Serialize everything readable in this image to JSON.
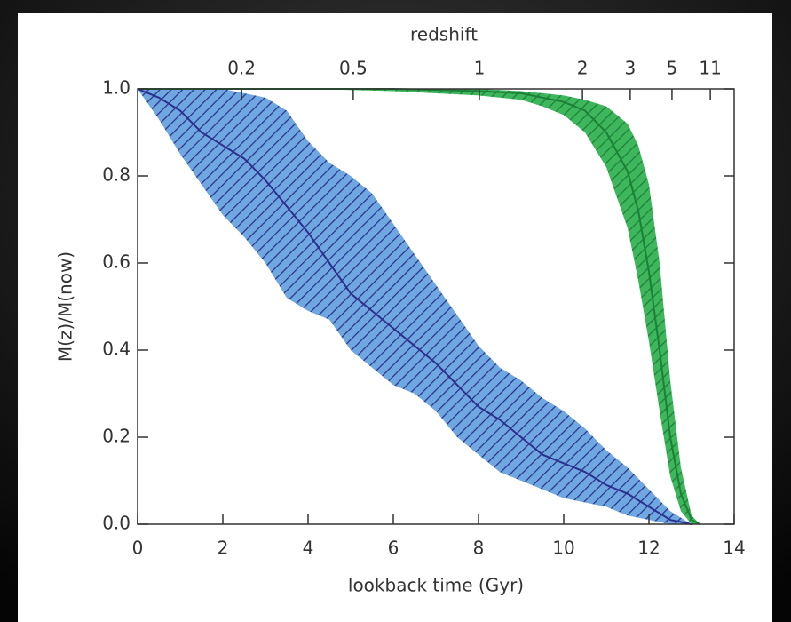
{
  "chart_data": {
    "type": "band",
    "xlabel": "lookback time (Gyr)",
    "ylabel": "M(z)/M(now)",
    "x2label": "redshift",
    "xlim": [
      0,
      14
    ],
    "ylim": [
      0,
      1
    ],
    "xticks": [
      0,
      2,
      4,
      6,
      8,
      10,
      12,
      14
    ],
    "yticks": [
      {
        "value": 0,
        "label": "0.0"
      },
      0.2,
      0.4,
      0.6,
      0.8,
      {
        "value": 1,
        "label": "1.0"
      }
    ],
    "x2ticks": [
      {
        "value": 2.44,
        "label": "0.2"
      },
      {
        "value": 5.06,
        "label": "0.5"
      },
      {
        "value": 8.02,
        "label": "1"
      },
      {
        "value": 10.44,
        "label": "2"
      },
      {
        "value": 11.56,
        "label": "3"
      },
      {
        "value": 12.54,
        "label": "5"
      },
      {
        "value": 13.44,
        "label": "11"
      }
    ],
    "series": [
      {
        "color": "#6fa8e0",
        "line_color": "#2d2f8f",
        "x": [
          0,
          0.5,
          1,
          1.5,
          2,
          2.5,
          3,
          3.5,
          4,
          4.5,
          5,
          5.5,
          6,
          6.5,
          7,
          7.5,
          8,
          8.5,
          9,
          9.5,
          10,
          10.5,
          11,
          11.5,
          12,
          12.5,
          13
        ],
        "values": [
          1.0,
          0.98,
          0.95,
          0.9,
          0.87,
          0.84,
          0.79,
          0.73,
          0.67,
          0.6,
          0.53,
          0.49,
          0.45,
          0.41,
          0.37,
          0.32,
          0.27,
          0.24,
          0.2,
          0.16,
          0.14,
          0.12,
          0.09,
          0.07,
          0.04,
          0.01,
          0.0
        ],
        "upper": [
          1.0,
          1.0,
          1.0,
          1.0,
          1.0,
          0.99,
          0.98,
          0.95,
          0.88,
          0.83,
          0.8,
          0.76,
          0.69,
          0.62,
          0.55,
          0.48,
          0.41,
          0.36,
          0.33,
          0.29,
          0.26,
          0.22,
          0.17,
          0.13,
          0.08,
          0.03,
          0.0
        ],
        "lower": [
          1.0,
          0.93,
          0.85,
          0.78,
          0.71,
          0.66,
          0.6,
          0.52,
          0.49,
          0.47,
          0.4,
          0.36,
          0.32,
          0.3,
          0.26,
          0.2,
          0.16,
          0.12,
          0.1,
          0.08,
          0.06,
          0.05,
          0.04,
          0.02,
          0.01,
          0.0,
          0.0
        ]
      },
      {
        "color": "#3db65c",
        "line_color": "#1d7f38",
        "x": [
          0,
          2,
          4,
          6,
          8,
          9,
          9.5,
          10,
          10.5,
          11,
          11.5,
          11.75,
          12,
          12.25,
          12.5,
          12.75,
          13,
          13.2
        ],
        "values": [
          1,
          1,
          1,
          1,
          0.995,
          0.99,
          0.98,
          0.97,
          0.95,
          0.9,
          0.81,
          0.72,
          0.58,
          0.4,
          0.2,
          0.07,
          0.01,
          0
        ],
        "upper": [
          1,
          1,
          1,
          1,
          1,
          0.995,
          0.99,
          0.985,
          0.975,
          0.96,
          0.92,
          0.87,
          0.78,
          0.6,
          0.33,
          0.13,
          0.02,
          0
        ],
        "lower": [
          1,
          1,
          1,
          0.995,
          0.985,
          0.975,
          0.96,
          0.94,
          0.9,
          0.82,
          0.68,
          0.56,
          0.42,
          0.26,
          0.11,
          0.03,
          0,
          0
        ]
      }
    ]
  }
}
